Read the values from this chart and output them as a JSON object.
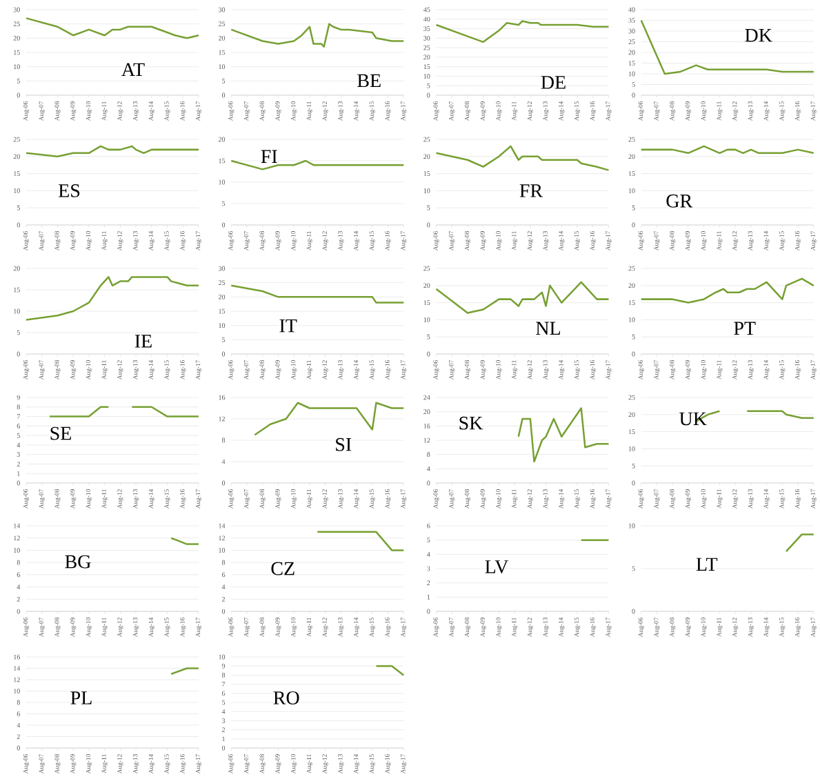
{
  "chart_data": [
    {
      "type": "line",
      "title": "AT",
      "color": "#77a032",
      "grid": "y",
      "ylim": [
        0,
        30
      ],
      "yticks": [
        0,
        5,
        10,
        15,
        20,
        25,
        30
      ],
      "xlim": [
        "2006-08",
        "2017-08"
      ],
      "xticks": [
        {
          "value": "2006-08",
          "label": "Aug-06"
        },
        {
          "value": "2007-08",
          "label": "Aug-07"
        },
        {
          "value": "2008-08",
          "label": "Aug-08"
        },
        {
          "value": "2009-08",
          "label": "Aug-09"
        },
        {
          "value": "2010-08",
          "label": "Aug-10"
        },
        {
          "value": "2011-08",
          "label": "Aug-11"
        },
        {
          "value": "2012-08",
          "label": "Aug-12"
        },
        {
          "value": "2013-08",
          "label": "Aug-13"
        },
        {
          "value": "2014-08",
          "label": "Aug-14"
        },
        {
          "value": "2015-08",
          "label": "Aug-15"
        },
        {
          "value": "2016-08",
          "label": "Aug-16"
        },
        {
          "value": "2017-08",
          "label": "Aug-17"
        }
      ],
      "x": [
        "2006-08",
        "2008-08",
        "2009-08",
        "2010-08",
        "2011-08",
        "2012-02",
        "2012-08",
        "2013-02",
        "2014-08",
        "2015-08",
        "2016-02",
        "2016-11",
        "2017-08"
      ],
      "values": [
        27,
        24,
        21,
        23,
        21,
        23,
        23,
        24,
        24,
        22,
        21,
        20,
        21
      ]
    },
    {
      "type": "line",
      "title": "BE",
      "color": "#77a032",
      "grid": "y",
      "ylim": [
        0,
        30
      ],
      "yticks": [
        0,
        5,
        10,
        15,
        20,
        25,
        30
      ],
      "xlim": [
        "2006-08",
        "2017-08"
      ],
      "xticks": [
        {
          "value": "2006-08",
          "label": "Aug-06"
        },
        {
          "value": "2007-08",
          "label": "Aug-07"
        },
        {
          "value": "2008-08",
          "label": "Aug-08"
        },
        {
          "value": "2009-08",
          "label": "Aug-09"
        },
        {
          "value": "2010-08",
          "label": "Aug-10"
        },
        {
          "value": "2011-08",
          "label": "Aug-11"
        },
        {
          "value": "2012-08",
          "label": "Aug-12"
        },
        {
          "value": "2013-08",
          "label": "Aug-13"
        },
        {
          "value": "2014-08",
          "label": "Aug-14"
        },
        {
          "value": "2015-08",
          "label": "Aug-15"
        },
        {
          "value": "2016-08",
          "label": "Aug-16"
        },
        {
          "value": "2017-08",
          "label": "Aug-17"
        }
      ],
      "x": [
        "2006-08",
        "2008-08",
        "2009-08",
        "2010-08",
        "2011-02",
        "2011-08",
        "2011-11",
        "2012-05",
        "2012-07",
        "2012-11",
        "2013-02",
        "2013-08",
        "2014-02",
        "2015-08",
        "2015-11",
        "2016-11",
        "2017-08"
      ],
      "values": [
        23,
        19,
        18,
        19,
        21,
        24,
        18,
        18,
        17,
        25,
        24,
        23,
        23,
        22,
        20,
        19,
        19
      ]
    },
    {
      "type": "line",
      "title": "DE",
      "color": "#77a032",
      "grid": "y",
      "ylim": [
        0,
        45
      ],
      "yticks": [
        0,
        5,
        10,
        15,
        20,
        25,
        30,
        35,
        40,
        45
      ],
      "xlim": [
        "2006-08",
        "2017-08"
      ],
      "xticks": [
        {
          "value": "2006-08",
          "label": "Aug-06"
        },
        {
          "value": "2007-08",
          "label": "Aug-07"
        },
        {
          "value": "2008-08",
          "label": "Aug-08"
        },
        {
          "value": "2009-08",
          "label": "Aug-09"
        },
        {
          "value": "2010-08",
          "label": "Aug-10"
        },
        {
          "value": "2011-08",
          "label": "Aug-11"
        },
        {
          "value": "2012-08",
          "label": "Aug-12"
        },
        {
          "value": "2013-08",
          "label": "Aug-13"
        },
        {
          "value": "2014-08",
          "label": "Aug-14"
        },
        {
          "value": "2015-08",
          "label": "Aug-15"
        },
        {
          "value": "2016-08",
          "label": "Aug-16"
        },
        {
          "value": "2017-08",
          "label": "Aug-17"
        }
      ],
      "x": [
        "2006-08",
        "2008-08",
        "2009-08",
        "2010-08",
        "2011-02",
        "2011-11",
        "2012-02",
        "2012-08",
        "2013-02",
        "2013-04",
        "2015-08",
        "2016-08",
        "2017-08"
      ],
      "values": [
        37,
        31,
        28,
        34,
        38,
        37,
        39,
        38,
        38,
        37,
        37,
        36,
        36
      ]
    },
    {
      "type": "line",
      "title": "DK",
      "color": "#77a032",
      "grid": "y",
      "ylim": [
        0,
        40
      ],
      "yticks": [
        0,
        5,
        10,
        15,
        20,
        25,
        30,
        35,
        40
      ],
      "xlim": [
        "2006-08",
        "2017-08"
      ],
      "xticks": [
        {
          "value": "2006-08",
          "label": "Aug-06"
        },
        {
          "value": "2007-08",
          "label": "Aug-07"
        },
        {
          "value": "2008-08",
          "label": "Aug-08"
        },
        {
          "value": "2009-08",
          "label": "Aug-09"
        },
        {
          "value": "2010-08",
          "label": "Aug-10"
        },
        {
          "value": "2011-08",
          "label": "Aug-11"
        },
        {
          "value": "2012-08",
          "label": "Aug-12"
        },
        {
          "value": "2013-08",
          "label": "Aug-13"
        },
        {
          "value": "2014-08",
          "label": "Aug-14"
        },
        {
          "value": "2015-08",
          "label": "Aug-15"
        },
        {
          "value": "2016-08",
          "label": "Aug-16"
        },
        {
          "value": "2017-08",
          "label": "Aug-17"
        }
      ],
      "x": [
        "2006-08",
        "2008-02",
        "2009-02",
        "2010-02",
        "2010-11",
        "2014-08",
        "2015-08",
        "2017-08"
      ],
      "values": [
        35,
        10,
        11,
        14,
        12,
        12,
        11,
        11
      ]
    },
    {
      "type": "line",
      "title": "ES",
      "color": "#77a032",
      "grid": "y",
      "ylim": [
        0,
        25
      ],
      "yticks": [
        0,
        5,
        10,
        15,
        20,
        25
      ],
      "xlim": [
        "2006-08",
        "2017-08"
      ],
      "xticks": [
        {
          "value": "2006-08",
          "label": "Aug-06"
        },
        {
          "value": "2007-08",
          "label": "Aug-07"
        },
        {
          "value": "2008-08",
          "label": "Aug-08"
        },
        {
          "value": "2009-08",
          "label": "Aug-09"
        },
        {
          "value": "2010-08",
          "label": "Aug-10"
        },
        {
          "value": "2011-08",
          "label": "Aug-11"
        },
        {
          "value": "2012-08",
          "label": "Aug-12"
        },
        {
          "value": "2013-08",
          "label": "Aug-13"
        },
        {
          "value": "2014-08",
          "label": "Aug-14"
        },
        {
          "value": "2015-08",
          "label": "Aug-15"
        },
        {
          "value": "2016-08",
          "label": "Aug-16"
        },
        {
          "value": "2017-08",
          "label": "Aug-17"
        }
      ],
      "x": [
        "2006-08",
        "2008-08",
        "2009-08",
        "2010-08",
        "2011-05",
        "2011-11",
        "2012-08",
        "2013-05",
        "2013-08",
        "2014-02",
        "2014-08",
        "2017-08"
      ],
      "values": [
        21,
        20,
        21,
        21,
        23,
        22,
        22,
        23,
        22,
        21,
        22,
        22
      ]
    },
    {
      "type": "line",
      "title": "FI",
      "color": "#77a032",
      "grid": "y",
      "ylim": [
        0,
        20
      ],
      "yticks": [
        0,
        5,
        10,
        15,
        20
      ],
      "xlim": [
        "2006-08",
        "2017-08"
      ],
      "xticks": [
        {
          "value": "2006-08",
          "label": "Aug-06"
        },
        {
          "value": "2007-08",
          "label": "Aug-07"
        },
        {
          "value": "2008-08",
          "label": "Aug-08"
        },
        {
          "value": "2009-08",
          "label": "Aug-09"
        },
        {
          "value": "2010-08",
          "label": "Aug-10"
        },
        {
          "value": "2011-08",
          "label": "Aug-11"
        },
        {
          "value": "2012-08",
          "label": "Aug-12"
        },
        {
          "value": "2013-08",
          "label": "Aug-13"
        },
        {
          "value": "2014-08",
          "label": "Aug-14"
        },
        {
          "value": "2015-08",
          "label": "Aug-15"
        },
        {
          "value": "2016-08",
          "label": "Aug-16"
        },
        {
          "value": "2017-08",
          "label": "Aug-17"
        }
      ],
      "x": [
        "2006-08",
        "2008-08",
        "2009-08",
        "2010-08",
        "2011-05",
        "2011-11",
        "2017-08"
      ],
      "values": [
        15,
        13,
        14,
        14,
        15,
        14,
        14
      ]
    },
    {
      "type": "line",
      "title": "FR",
      "color": "#77a032",
      "grid": "y",
      "ylim": [
        0,
        25
      ],
      "yticks": [
        0,
        5,
        10,
        15,
        20,
        25
      ],
      "xlim": [
        "2006-08",
        "2017-08"
      ],
      "xticks": [
        {
          "value": "2006-08",
          "label": "Aug-06"
        },
        {
          "value": "2007-08",
          "label": "Aug-07"
        },
        {
          "value": "2008-08",
          "label": "Aug-08"
        },
        {
          "value": "2009-08",
          "label": "Aug-09"
        },
        {
          "value": "2010-08",
          "label": "Aug-10"
        },
        {
          "value": "2011-08",
          "label": "Aug-11"
        },
        {
          "value": "2012-08",
          "label": "Aug-12"
        },
        {
          "value": "2013-08",
          "label": "Aug-13"
        },
        {
          "value": "2014-08",
          "label": "Aug-14"
        },
        {
          "value": "2015-08",
          "label": "Aug-15"
        },
        {
          "value": "2016-08",
          "label": "Aug-16"
        },
        {
          "value": "2017-08",
          "label": "Aug-17"
        }
      ],
      "x": [
        "2006-08",
        "2008-08",
        "2009-08",
        "2010-08",
        "2011-05",
        "2011-11",
        "2012-02",
        "2013-02",
        "2013-05",
        "2015-08",
        "2015-11",
        "2016-11",
        "2017-08"
      ],
      "values": [
        21,
        19,
        17,
        20,
        23,
        19,
        20,
        20,
        19,
        19,
        18,
        17,
        16
      ]
    },
    {
      "type": "line",
      "title": "GR",
      "color": "#77a032",
      "grid": "y",
      "ylim": [
        0,
        25
      ],
      "yticks": [
        0,
        5,
        10,
        15,
        20,
        25
      ],
      "xlim": [
        "2006-08",
        "2017-08"
      ],
      "xticks": [
        {
          "value": "2006-08",
          "label": "Aug-06"
        },
        {
          "value": "2007-08",
          "label": "Aug-07"
        },
        {
          "value": "2008-08",
          "label": "Aug-08"
        },
        {
          "value": "2009-08",
          "label": "Aug-09"
        },
        {
          "value": "2010-08",
          "label": "Aug-10"
        },
        {
          "value": "2011-08",
          "label": "Aug-11"
        },
        {
          "value": "2012-08",
          "label": "Aug-12"
        },
        {
          "value": "2013-08",
          "label": "Aug-13"
        },
        {
          "value": "2014-08",
          "label": "Aug-14"
        },
        {
          "value": "2015-08",
          "label": "Aug-15"
        },
        {
          "value": "2016-08",
          "label": "Aug-16"
        },
        {
          "value": "2017-08",
          "label": "Aug-17"
        }
      ],
      "x": [
        "2006-08",
        "2008-08",
        "2009-08",
        "2010-08",
        "2011-08",
        "2012-02",
        "2012-08",
        "2013-02",
        "2013-08",
        "2014-02",
        "2015-08",
        "2016-08",
        "2017-08"
      ],
      "values": [
        22,
        22,
        21,
        23,
        21,
        22,
        22,
        21,
        22,
        21,
        21,
        22,
        21
      ]
    },
    {
      "type": "line",
      "title": "IE",
      "color": "#77a032",
      "grid": "y",
      "ylim": [
        0,
        20
      ],
      "yticks": [
        0,
        5,
        10,
        15,
        20
      ],
      "xlim": [
        "2006-08",
        "2017-08"
      ],
      "xticks": [
        {
          "value": "2006-08",
          "label": "Aug-06"
        },
        {
          "value": "2007-08",
          "label": "Aug-07"
        },
        {
          "value": "2008-08",
          "label": "Aug-08"
        },
        {
          "value": "2009-08",
          "label": "Aug-09"
        },
        {
          "value": "2010-08",
          "label": "Aug-10"
        },
        {
          "value": "2011-08",
          "label": "Aug-11"
        },
        {
          "value": "2012-08",
          "label": "Aug-12"
        },
        {
          "value": "2013-08",
          "label": "Aug-13"
        },
        {
          "value": "2014-08",
          "label": "Aug-14"
        },
        {
          "value": "2015-08",
          "label": "Aug-15"
        },
        {
          "value": "2016-08",
          "label": "Aug-16"
        },
        {
          "value": "2017-08",
          "label": "Aug-17"
        }
      ],
      "x": [
        "2006-08",
        "2008-08",
        "2009-08",
        "2010-08",
        "2011-05",
        "2011-11",
        "2012-02",
        "2012-08",
        "2013-02",
        "2013-05",
        "2015-08",
        "2015-11",
        "2016-11",
        "2017-08"
      ],
      "values": [
        8,
        9,
        10,
        12,
        16,
        18,
        16,
        17,
        17,
        18,
        18,
        17,
        16,
        16
      ]
    },
    {
      "type": "line",
      "title": "IT",
      "color": "#77a032",
      "grid": "y",
      "ylim": [
        0,
        30
      ],
      "yticks": [
        0,
        5,
        10,
        15,
        20,
        25,
        30
      ],
      "xlim": [
        "2006-08",
        "2017-08"
      ],
      "xticks": [
        {
          "value": "2006-08",
          "label": "Aug-06"
        },
        {
          "value": "2007-08",
          "label": "Aug-07"
        },
        {
          "value": "2008-08",
          "label": "Aug-08"
        },
        {
          "value": "2009-08",
          "label": "Aug-09"
        },
        {
          "value": "2010-08",
          "label": "Aug-10"
        },
        {
          "value": "2011-08",
          "label": "Aug-11"
        },
        {
          "value": "2012-08",
          "label": "Aug-12"
        },
        {
          "value": "2013-08",
          "label": "Aug-13"
        },
        {
          "value": "2014-08",
          "label": "Aug-14"
        },
        {
          "value": "2015-08",
          "label": "Aug-15"
        },
        {
          "value": "2016-08",
          "label": "Aug-16"
        },
        {
          "value": "2017-08",
          "label": "Aug-17"
        }
      ],
      "x": [
        "2006-08",
        "2008-08",
        "2009-08",
        "2015-08",
        "2015-11",
        "2017-08"
      ],
      "values": [
        24,
        22,
        20,
        20,
        18,
        18
      ]
    },
    {
      "type": "line",
      "title": "NL",
      "color": "#77a032",
      "grid": "y",
      "ylim": [
        0,
        25
      ],
      "yticks": [
        0,
        5,
        10,
        15,
        20,
        25
      ],
      "xlim": [
        "2006-08",
        "2017-08"
      ],
      "xticks": [
        {
          "value": "2006-08",
          "label": "Aug-06"
        },
        {
          "value": "2007-08",
          "label": "Aug-07"
        },
        {
          "value": "2008-08",
          "label": "Aug-08"
        },
        {
          "value": "2009-08",
          "label": "Aug-09"
        },
        {
          "value": "2010-08",
          "label": "Aug-10"
        },
        {
          "value": "2011-08",
          "label": "Aug-11"
        },
        {
          "value": "2012-08",
          "label": "Aug-12"
        },
        {
          "value": "2013-08",
          "label": "Aug-13"
        },
        {
          "value": "2014-08",
          "label": "Aug-14"
        },
        {
          "value": "2015-08",
          "label": "Aug-15"
        },
        {
          "value": "2016-08",
          "label": "Aug-16"
        },
        {
          "value": "2017-08",
          "label": "Aug-17"
        }
      ],
      "x": [
        "2006-08",
        "2008-08",
        "2009-08",
        "2010-08",
        "2011-05",
        "2011-11",
        "2012-02",
        "2012-11",
        "2013-05",
        "2013-08",
        "2013-11",
        "2014-08",
        "2015-11",
        "2016-11",
        "2017-08"
      ],
      "values": [
        19,
        12,
        13,
        16,
        16,
        14,
        16,
        16,
        18,
        14,
        20,
        15,
        21,
        16,
        16
      ]
    },
    {
      "type": "line",
      "title": "PT",
      "color": "#77a032",
      "grid": "y",
      "ylim": [
        0,
        25
      ],
      "yticks": [
        0,
        5,
        10,
        15,
        20,
        25
      ],
      "xlim": [
        "2006-08",
        "2017-08"
      ],
      "xticks": [
        {
          "value": "2006-08",
          "label": "Aug-06"
        },
        {
          "value": "2007-08",
          "label": "Aug-07"
        },
        {
          "value": "2008-08",
          "label": "Aug-08"
        },
        {
          "value": "2009-08",
          "label": "Aug-09"
        },
        {
          "value": "2010-08",
          "label": "Aug-10"
        },
        {
          "value": "2011-08",
          "label": "Aug-11"
        },
        {
          "value": "2012-08",
          "label": "Aug-12"
        },
        {
          "value": "2013-08",
          "label": "Aug-13"
        },
        {
          "value": "2014-08",
          "label": "Aug-14"
        },
        {
          "value": "2015-08",
          "label": "Aug-15"
        },
        {
          "value": "2016-08",
          "label": "Aug-16"
        },
        {
          "value": "2017-08",
          "label": "Aug-17"
        }
      ],
      "x": [
        "2006-08",
        "2008-08",
        "2009-08",
        "2010-08",
        "2011-05",
        "2011-11",
        "2012-02",
        "2012-11",
        "2013-05",
        "2013-11",
        "2014-08",
        "2015-08",
        "2015-11",
        "2016-11",
        "2017-08"
      ],
      "values": [
        16,
        16,
        15,
        16,
        18,
        19,
        18,
        18,
        19,
        19,
        21,
        16,
        20,
        22,
        20
      ]
    },
    {
      "type": "line",
      "title": "SE",
      "color": "#77a032",
      "grid": "y",
      "ylim": [
        0,
        9
      ],
      "yticks": [
        0,
        1,
        2,
        3,
        4,
        5,
        6,
        7,
        8,
        9
      ],
      "xlim": [
        "2006-08",
        "2017-08"
      ],
      "xticks": [
        {
          "value": "2006-08",
          "label": "Aug-06"
        },
        {
          "value": "2007-08",
          "label": "Aug-07"
        },
        {
          "value": "2008-08",
          "label": "Aug-08"
        },
        {
          "value": "2009-08",
          "label": "Aug-09"
        },
        {
          "value": "2010-08",
          "label": "Aug-10"
        },
        {
          "value": "2011-08",
          "label": "Aug-11"
        },
        {
          "value": "2012-08",
          "label": "Aug-12"
        },
        {
          "value": "2013-08",
          "label": "Aug-13"
        },
        {
          "value": "2014-08",
          "label": "Aug-14"
        },
        {
          "value": "2015-08",
          "label": "Aug-15"
        },
        {
          "value": "2016-08",
          "label": "Aug-16"
        },
        {
          "value": "2017-08",
          "label": "Aug-17"
        }
      ],
      "x": [
        "2008-02",
        "2010-08",
        "2011-05",
        "2011-11",
        "2012-08",
        "2013-05",
        "2014-08",
        "2015-08",
        "2017-08"
      ],
      "values": [
        7,
        7,
        8,
        8,
        null,
        8,
        8,
        7,
        7
      ]
    },
    {
      "type": "line",
      "title": "SI",
      "color": "#77a032",
      "grid": "y",
      "ylim": [
        0,
        16
      ],
      "yticks": [
        0,
        4,
        8,
        12,
        16
      ],
      "xlim": [
        "2006-08",
        "2017-08"
      ],
      "xticks": [
        {
          "value": "2006-08",
          "label": "Aug-06"
        },
        {
          "value": "2007-08",
          "label": "Aug-07"
        },
        {
          "value": "2008-08",
          "label": "Aug-08"
        },
        {
          "value": "2009-08",
          "label": "Aug-09"
        },
        {
          "value": "2010-08",
          "label": "Aug-10"
        },
        {
          "value": "2011-08",
          "label": "Aug-11"
        },
        {
          "value": "2012-08",
          "label": "Aug-12"
        },
        {
          "value": "2013-08",
          "label": "Aug-13"
        },
        {
          "value": "2014-08",
          "label": "Aug-14"
        },
        {
          "value": "2015-08",
          "label": "Aug-15"
        },
        {
          "value": "2016-08",
          "label": "Aug-16"
        },
        {
          "value": "2017-08",
          "label": "Aug-17"
        }
      ],
      "x": [
        "2008-02",
        "2009-02",
        "2010-02",
        "2010-11",
        "2011-08",
        "2014-08",
        "2015-08",
        "2015-11",
        "2016-11",
        "2017-08"
      ],
      "values": [
        9,
        11,
        12,
        15,
        14,
        14,
        10,
        15,
        14,
        14
      ]
    },
    {
      "type": "line",
      "title": "SK",
      "color": "#77a032",
      "grid": "y",
      "ylim": [
        0,
        24
      ],
      "yticks": [
        0,
        4,
        8,
        12,
        16,
        20,
        24
      ],
      "xlim": [
        "2006-08",
        "2017-08"
      ],
      "xticks": [
        {
          "value": "2006-08",
          "label": "Aug-06"
        },
        {
          "value": "2007-08",
          "label": "Aug-07"
        },
        {
          "value": "2008-08",
          "label": "Aug-08"
        },
        {
          "value": "2009-08",
          "label": "Aug-09"
        },
        {
          "value": "2010-08",
          "label": "Aug-10"
        },
        {
          "value": "2011-08",
          "label": "Aug-11"
        },
        {
          "value": "2012-08",
          "label": "Aug-12"
        },
        {
          "value": "2013-08",
          "label": "Aug-13"
        },
        {
          "value": "2014-08",
          "label": "Aug-14"
        },
        {
          "value": "2015-08",
          "label": "Aug-15"
        },
        {
          "value": "2016-08",
          "label": "Aug-16"
        },
        {
          "value": "2017-08",
          "label": "Aug-17"
        }
      ],
      "x": [
        "2011-11",
        "2012-02",
        "2012-08",
        "2012-11",
        "2013-05",
        "2013-08",
        "2014-02",
        "2014-08",
        "2015-11",
        "2016-02",
        "2016-11",
        "2017-08"
      ],
      "values": [
        13,
        18,
        18,
        6,
        12,
        13,
        18,
        13,
        21,
        10,
        11,
        11
      ]
    },
    {
      "type": "line",
      "title": "UK",
      "color": "#77a032",
      "grid": "y",
      "ylim": [
        0,
        25
      ],
      "yticks": [
        0,
        5,
        10,
        15,
        20,
        25
      ],
      "xlim": [
        "2006-08",
        "2017-08"
      ],
      "xticks": [
        {
          "value": "2006-08",
          "label": "Aug-06"
        },
        {
          "value": "2007-08",
          "label": "Aug-07"
        },
        {
          "value": "2008-08",
          "label": "Aug-08"
        },
        {
          "value": "2009-08",
          "label": "Aug-09"
        },
        {
          "value": "2010-08",
          "label": "Aug-10"
        },
        {
          "value": "2011-08",
          "label": "Aug-11"
        },
        {
          "value": "2012-08",
          "label": "Aug-12"
        },
        {
          "value": "2013-08",
          "label": "Aug-13"
        },
        {
          "value": "2014-08",
          "label": "Aug-14"
        },
        {
          "value": "2015-08",
          "label": "Aug-15"
        },
        {
          "value": "2016-08",
          "label": "Aug-16"
        },
        {
          "value": "2017-08",
          "label": "Aug-17"
        }
      ],
      "x": [
        "2010-02",
        "2010-11",
        "2011-08",
        "2012-08",
        "2013-05",
        "2015-08",
        "2015-11",
        "2016-11",
        "2017-08"
      ],
      "values": [
        18,
        20,
        21,
        null,
        21,
        21,
        20,
        19,
        19
      ]
    },
    {
      "type": "line",
      "title": "BG",
      "color": "#77a032",
      "grid": "y",
      "ylim": [
        0,
        14
      ],
      "yticks": [
        0,
        2,
        4,
        6,
        8,
        10,
        12,
        14
      ],
      "xlim": [
        "2006-08",
        "2017-08"
      ],
      "xticks": [
        {
          "value": "2006-08",
          "label": "Aug-06"
        },
        {
          "value": "2007-08",
          "label": "Aug-07"
        },
        {
          "value": "2008-08",
          "label": "Aug-08"
        },
        {
          "value": "2009-08",
          "label": "Aug-09"
        },
        {
          "value": "2010-08",
          "label": "Aug-10"
        },
        {
          "value": "2011-08",
          "label": "Aug-11"
        },
        {
          "value": "2012-08",
          "label": "Aug-12"
        },
        {
          "value": "2013-08",
          "label": "Aug-13"
        },
        {
          "value": "2014-08",
          "label": "Aug-14"
        },
        {
          "value": "2015-08",
          "label": "Aug-15"
        },
        {
          "value": "2016-08",
          "label": "Aug-16"
        },
        {
          "value": "2017-08",
          "label": "Aug-17"
        }
      ],
      "x": [
        "2015-11",
        "2016-11",
        "2017-08"
      ],
      "values": [
        12,
        11,
        11
      ]
    },
    {
      "type": "line",
      "title": "CZ",
      "color": "#77a032",
      "grid": "y",
      "ylim": [
        0,
        14
      ],
      "yticks": [
        0,
        2,
        4,
        6,
        8,
        10,
        12,
        14
      ],
      "xlim": [
        "2006-08",
        "2017-08"
      ],
      "xticks": [
        {
          "value": "2006-08",
          "label": "Aug-06"
        },
        {
          "value": "2007-08",
          "label": "Aug-07"
        },
        {
          "value": "2008-08",
          "label": "Aug-08"
        },
        {
          "value": "2009-08",
          "label": "Aug-09"
        },
        {
          "value": "2010-08",
          "label": "Aug-10"
        },
        {
          "value": "2011-08",
          "label": "Aug-11"
        },
        {
          "value": "2012-08",
          "label": "Aug-12"
        },
        {
          "value": "2013-08",
          "label": "Aug-13"
        },
        {
          "value": "2014-08",
          "label": "Aug-14"
        },
        {
          "value": "2015-08",
          "label": "Aug-15"
        },
        {
          "value": "2016-08",
          "label": "Aug-16"
        },
        {
          "value": "2017-08",
          "label": "Aug-17"
        }
      ],
      "x": [
        "2012-02",
        "2015-11",
        "2016-11",
        "2017-08"
      ],
      "values": [
        13,
        13,
        10,
        10
      ]
    },
    {
      "type": "line",
      "title": "LV",
      "color": "#77a032",
      "grid": "y",
      "ylim": [
        0,
        6
      ],
      "yticks": [
        0,
        1,
        2,
        3,
        4,
        5,
        6
      ],
      "xlim": [
        "2006-08",
        "2017-08"
      ],
      "xticks": [
        {
          "value": "2006-08",
          "label": "Aug-06"
        },
        {
          "value": "2007-08",
          "label": "Aug-07"
        },
        {
          "value": "2008-08",
          "label": "Aug-08"
        },
        {
          "value": "2009-08",
          "label": "Aug-09"
        },
        {
          "value": "2010-08",
          "label": "Aug-10"
        },
        {
          "value": "2011-08",
          "label": "Aug-11"
        },
        {
          "value": "2012-08",
          "label": "Aug-12"
        },
        {
          "value": "2013-08",
          "label": "Aug-13"
        },
        {
          "value": "2014-08",
          "label": "Aug-14"
        },
        {
          "value": "2015-08",
          "label": "Aug-15"
        },
        {
          "value": "2016-08",
          "label": "Aug-16"
        },
        {
          "value": "2017-08",
          "label": "Aug-17"
        }
      ],
      "x": [
        "2015-11",
        "2017-08"
      ],
      "values": [
        5,
        5
      ]
    },
    {
      "type": "line",
      "title": "LT",
      "color": "#77a032",
      "grid": "y",
      "ylim": [
        0,
        10
      ],
      "yticks": [
        0,
        5,
        10
      ],
      "xlim": [
        "2006-08",
        "2017-08"
      ],
      "xticks": [
        {
          "value": "2006-08",
          "label": "Aug-06"
        },
        {
          "value": "2007-08",
          "label": "Aug-07"
        },
        {
          "value": "2008-08",
          "label": "Aug-08"
        },
        {
          "value": "2009-08",
          "label": "Aug-09"
        },
        {
          "value": "2010-08",
          "label": "Aug-10"
        },
        {
          "value": "2011-08",
          "label": "Aug-11"
        },
        {
          "value": "2012-08",
          "label": "Aug-12"
        },
        {
          "value": "2013-08",
          "label": "Aug-13"
        },
        {
          "value": "2014-08",
          "label": "Aug-14"
        },
        {
          "value": "2015-08",
          "label": "Aug-15"
        },
        {
          "value": "2016-08",
          "label": "Aug-16"
        },
        {
          "value": "2017-08",
          "label": "Aug-17"
        }
      ],
      "x": [
        "2015-11",
        "2016-11",
        "2017-08"
      ],
      "values": [
        7,
        9,
        9
      ]
    },
    {
      "type": "line",
      "title": "PL",
      "color": "#77a032",
      "grid": "y",
      "ylim": [
        0,
        16
      ],
      "yticks": [
        0,
        2,
        4,
        6,
        8,
        10,
        12,
        14,
        16
      ],
      "xlim": [
        "2006-08",
        "2017-08"
      ],
      "xticks": [
        {
          "value": "2006-08",
          "label": "Aug-06"
        },
        {
          "value": "2007-08",
          "label": "Aug-07"
        },
        {
          "value": "2008-08",
          "label": "Aug-08"
        },
        {
          "value": "2009-08",
          "label": "Aug-09"
        },
        {
          "value": "2010-08",
          "label": "Aug-10"
        },
        {
          "value": "2011-08",
          "label": "Aug-11"
        },
        {
          "value": "2012-08",
          "label": "Aug-12"
        },
        {
          "value": "2013-08",
          "label": "Aug-13"
        },
        {
          "value": "2014-08",
          "label": "Aug-14"
        },
        {
          "value": "2015-08",
          "label": "Aug-15"
        },
        {
          "value": "2016-08",
          "label": "Aug-16"
        },
        {
          "value": "2017-08",
          "label": "Aug-17"
        }
      ],
      "x": [
        "2015-11",
        "2016-11",
        "2017-08"
      ],
      "values": [
        13,
        14,
        14
      ]
    },
    {
      "type": "line",
      "title": "RO",
      "color": "#77a032",
      "grid": "y",
      "ylim": [
        0,
        10
      ],
      "yticks": [
        0,
        1,
        2,
        3,
        4,
        5,
        6,
        7,
        8,
        9,
        10
      ],
      "xlim": [
        "2006-08",
        "2017-08"
      ],
      "xticks": [
        {
          "value": "2006-08",
          "label": "Aug-06"
        },
        {
          "value": "2007-08",
          "label": "Aug-07"
        },
        {
          "value": "2008-08",
          "label": "Aug-08"
        },
        {
          "value": "2009-08",
          "label": "Aug-09"
        },
        {
          "value": "2010-08",
          "label": "Aug-10"
        },
        {
          "value": "2011-08",
          "label": "Aug-11"
        },
        {
          "value": "2012-08",
          "label": "Aug-12"
        },
        {
          "value": "2013-08",
          "label": "Aug-13"
        },
        {
          "value": "2014-08",
          "label": "Aug-14"
        },
        {
          "value": "2015-08",
          "label": "Aug-15"
        },
        {
          "value": "2016-08",
          "label": "Aug-16"
        },
        {
          "value": "2017-08",
          "label": "Aug-17"
        }
      ],
      "x": [
        "2015-11",
        "2016-11",
        "2017-08"
      ],
      "values": [
        9,
        9,
        8
      ]
    }
  ]
}
